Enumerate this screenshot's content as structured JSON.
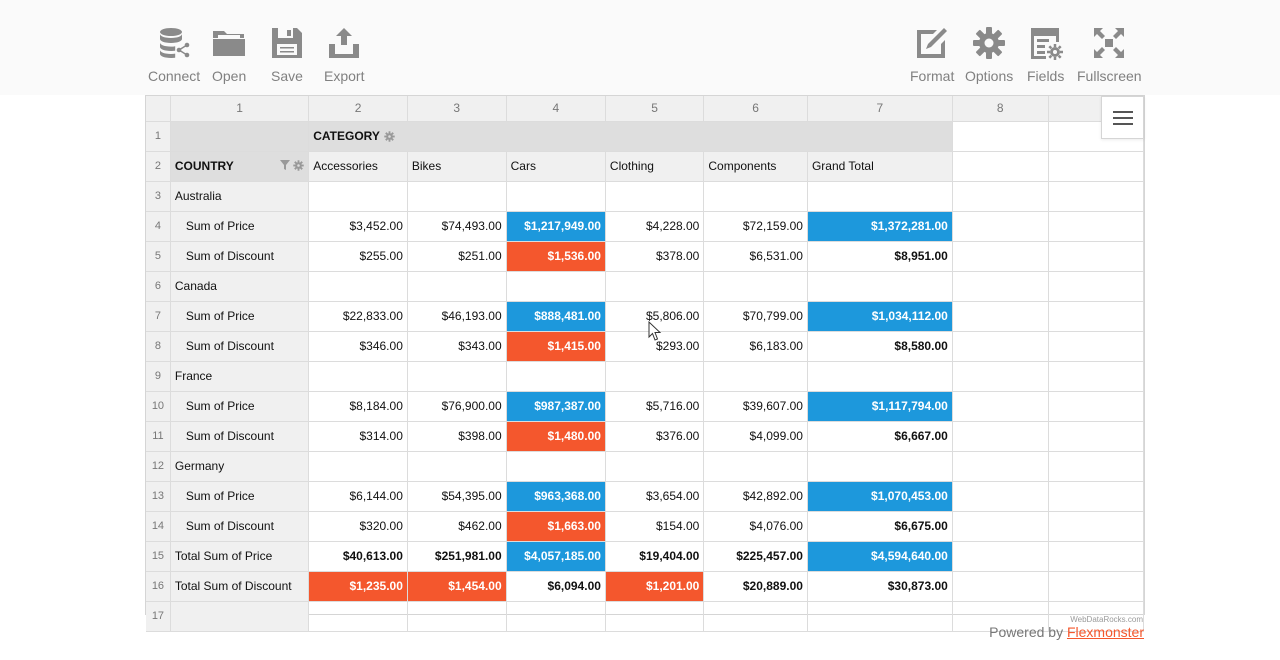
{
  "toolbar": {
    "left": [
      {
        "label": "Connect",
        "icon": "database-icon"
      },
      {
        "label": "Open",
        "icon": "folder-icon"
      },
      {
        "label": "Save",
        "icon": "floppy-disk-icon"
      },
      {
        "label": "Export",
        "icon": "export-icon"
      }
    ],
    "right": [
      {
        "label": "Format",
        "icon": "format-icon"
      },
      {
        "label": "Options",
        "icon": "gear-icon"
      },
      {
        "label": "Fields",
        "icon": "fields-icon"
      },
      {
        "label": "Fullscreen",
        "icon": "fullscreen-icon"
      }
    ]
  },
  "grid": {
    "column_numbers": [
      "1",
      "2",
      "3",
      "4",
      "5",
      "6",
      "7",
      "8"
    ],
    "row_numbers": [
      "1",
      "2",
      "3",
      "4",
      "5",
      "6",
      "7",
      "8",
      "9",
      "10",
      "11",
      "12",
      "13",
      "14",
      "15",
      "16",
      "17"
    ],
    "category_label": "CATEGORY",
    "country_label": "COUNTRY",
    "categories": [
      "Accessories",
      "Bikes",
      "Cars",
      "Clothing",
      "Components",
      "Grand Total"
    ],
    "rows": [
      {
        "label": "Australia",
        "type": "group",
        "values": []
      },
      {
        "label": "Sum of Price",
        "type": "measure",
        "values": [
          "$3,452.00",
          "$74,493.00",
          "$1,217,949.00",
          "$4,228.00",
          "$72,159.00",
          "$1,372,281.00"
        ],
        "highlight": [
          "",
          "",
          "blue",
          "",
          "",
          "blue"
        ]
      },
      {
        "label": "Sum of Discount",
        "type": "measure",
        "values": [
          "$255.00",
          "$251.00",
          "$1,536.00",
          "$378.00",
          "$6,531.00",
          "$8,951.00"
        ],
        "highlight": [
          "",
          "",
          "red",
          "",
          "",
          ""
        ]
      },
      {
        "label": "Canada",
        "type": "group",
        "values": []
      },
      {
        "label": "Sum of Price",
        "type": "measure",
        "values": [
          "$22,833.00",
          "$46,193.00",
          "$888,481.00",
          "$5,806.00",
          "$70,799.00",
          "$1,034,112.00"
        ],
        "highlight": [
          "",
          "",
          "blue",
          "",
          "",
          "blue"
        ]
      },
      {
        "label": "Sum of Discount",
        "type": "measure",
        "values": [
          "$346.00",
          "$343.00",
          "$1,415.00",
          "$293.00",
          "$6,183.00",
          "$8,580.00"
        ],
        "highlight": [
          "",
          "",
          "red",
          "",
          "",
          ""
        ]
      },
      {
        "label": "France",
        "type": "group",
        "values": []
      },
      {
        "label": "Sum of Price",
        "type": "measure",
        "values": [
          "$8,184.00",
          "$76,900.00",
          "$987,387.00",
          "$5,716.00",
          "$39,607.00",
          "$1,117,794.00"
        ],
        "highlight": [
          "",
          "",
          "blue",
          "",
          "",
          "blue"
        ]
      },
      {
        "label": "Sum of Discount",
        "type": "measure",
        "values": [
          "$314.00",
          "$398.00",
          "$1,480.00",
          "$376.00",
          "$4,099.00",
          "$6,667.00"
        ],
        "highlight": [
          "",
          "",
          "red",
          "",
          "",
          ""
        ]
      },
      {
        "label": "Germany",
        "type": "group",
        "values": []
      },
      {
        "label": "Sum of Price",
        "type": "measure",
        "values": [
          "$6,144.00",
          "$54,395.00",
          "$963,368.00",
          "$3,654.00",
          "$42,892.00",
          "$1,070,453.00"
        ],
        "highlight": [
          "",
          "",
          "blue",
          "",
          "",
          "blue"
        ]
      },
      {
        "label": "Sum of Discount",
        "type": "measure",
        "values": [
          "$320.00",
          "$462.00",
          "$1,663.00",
          "$154.00",
          "$4,076.00",
          "$6,675.00"
        ],
        "highlight": [
          "",
          "",
          "red",
          "",
          "",
          ""
        ]
      },
      {
        "label": "Total Sum of Price",
        "type": "total",
        "values": [
          "$40,613.00",
          "$251,981.00",
          "$4,057,185.00",
          "$19,404.00",
          "$225,457.00",
          "$4,594,640.00"
        ],
        "highlight": [
          "",
          "",
          "blue",
          "",
          "",
          "blue"
        ]
      },
      {
        "label": "Total Sum of Discount",
        "type": "total",
        "values": [
          "$1,235.00",
          "$1,454.00",
          "$6,094.00",
          "$1,201.00",
          "$20,889.00",
          "$30,873.00"
        ],
        "highlight": [
          "red",
          "red",
          "",
          "red",
          "",
          ""
        ]
      }
    ]
  },
  "colors": {
    "highlight_blue": "#1d98dc",
    "highlight_red": "#f4572d",
    "header_gray": "#dedede",
    "header_light": "#f0f0f0",
    "toolbar_text": "#808080"
  },
  "footer": {
    "credit": "WebDataRocks.com",
    "powered_by": "Powered by",
    "brand_link": "Flexmonster"
  }
}
